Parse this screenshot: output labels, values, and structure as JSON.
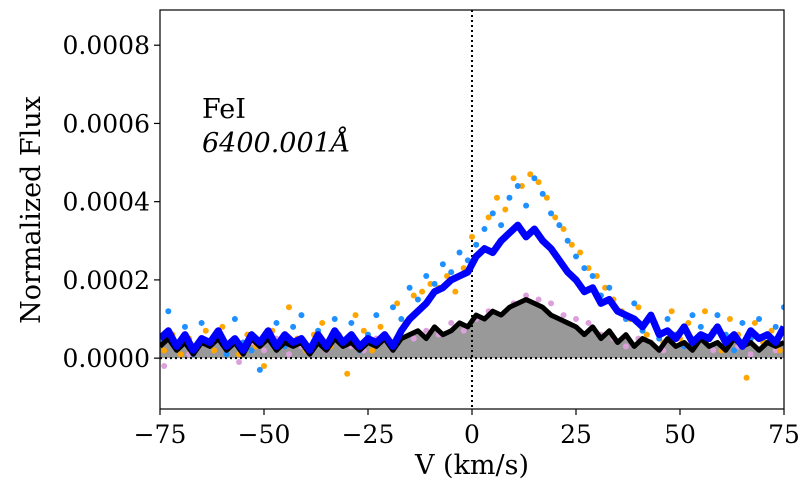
{
  "chart_data": {
    "type": "line",
    "title": "",
    "xlabel": "V (km/s)",
    "ylabel": "Normalized Flux",
    "xlim": [
      -75,
      75
    ],
    "ylim": [
      -0.00013,
      0.00089
    ],
    "x_ticks": [
      -75,
      -50,
      -25,
      0,
      25,
      50,
      75
    ],
    "x_tick_labels": [
      "−75",
      "−50",
      "−25",
      "0",
      "25",
      "50",
      "75"
    ],
    "y_ticks": [
      0,
      0.0002,
      0.0004,
      0.0006,
      0.0008
    ],
    "y_tick_labels": [
      "0.0000",
      "0.0002",
      "0.0004",
      "0.0006",
      "0.0008"
    ],
    "annotation": {
      "element": "FeI",
      "wavelength": "6400.001Å",
      "position": "top-left"
    },
    "reference_lines": {
      "zero_flux": 0,
      "zero_velocity": 0,
      "style": "dotted"
    },
    "series": [
      {
        "name": "orange-points",
        "style": "scatter",
        "color": "#FFA500",
        "x": [
          -74,
          -72,
          -70,
          -68,
          -66,
          -64,
          -62,
          -60,
          -58,
          -56,
          -54,
          -52,
          -50,
          -48,
          -46,
          -44,
          -42,
          -40,
          -38,
          -36,
          -34,
          -32,
          -30,
          -28,
          -26,
          -24,
          -22,
          -20,
          -18,
          -16,
          -14,
          -12,
          -10,
          -8,
          -6,
          -4,
          -2,
          0,
          2,
          4,
          6,
          8,
          10,
          12,
          14,
          16,
          18,
          20,
          22,
          24,
          26,
          28,
          30,
          32,
          34,
          36,
          38,
          40,
          42,
          44,
          46,
          48,
          50,
          52,
          54,
          56,
          58,
          60,
          62,
          64,
          66,
          68,
          70,
          72,
          74
        ],
        "y": [
          2e-05,
          6e-05,
          1e-05,
          5e-05,
          3e-05,
          7e-05,
          2e-05,
          8e-05,
          4e-05,
          1e-05,
          6e-05,
          3e-05,
          -2e-05,
          7e-05,
          4e-05,
          0.00013,
          5e-05,
          2e-05,
          6e-05,
          9e-05,
          3e-05,
          4e-05,
          -4e-05,
          0.00011,
          7e-05,
          2e-05,
          8e-05,
          4e-05,
          0.00014,
          9e-05,
          0.00016,
          0.00017,
          0.00019,
          0.00018,
          0.00021,
          0.00017,
          0.00023,
          0.00031,
          0.00027,
          0.00036,
          0.00041,
          0.00038,
          0.00046,
          0.00044,
          0.00047,
          0.00045,
          0.00041,
          0.00036,
          0.00033,
          0.00029,
          0.00027,
          0.00023,
          0.00021,
          0.00018,
          0.00015,
          0.00012,
          0.0001,
          0.00013,
          6e-05,
          9e-05,
          4e-05,
          0.00012,
          5e-05,
          9e-05,
          4e-05,
          0.00012,
          7e-05,
          2e-05,
          0.0001,
          6e-05,
          -5e-05,
          9e-05,
          4e-05,
          7e-05,
          2e-05
        ]
      },
      {
        "name": "lightblue-points",
        "style": "scatter",
        "color": "#1E90FF",
        "x": [
          -75,
          -73,
          -71,
          -69,
          -67,
          -65,
          -63,
          -61,
          -59,
          -57,
          -55,
          -53,
          -51,
          -49,
          -47,
          -45,
          -43,
          -41,
          -39,
          -37,
          -35,
          -33,
          -31,
          -29,
          -27,
          -25,
          -23,
          -21,
          -19,
          -17,
          -15,
          -13,
          -11,
          -9,
          -7,
          -5,
          -3,
          -1,
          1,
          3,
          5,
          7,
          9,
          11,
          13,
          15,
          17,
          19,
          21,
          23,
          25,
          27,
          29,
          31,
          33,
          35,
          37,
          39,
          41,
          43,
          45,
          47,
          49,
          51,
          53,
          55,
          57,
          59,
          61,
          63,
          65,
          67,
          69,
          71,
          73,
          75
        ],
        "y": [
          4e-05,
          0.00012,
          3e-05,
          8e-05,
          1e-05,
          9e-05,
          4e-05,
          7e-05,
          1e-05,
          0.0001,
          4e-05,
          2e-05,
          -3e-05,
          6e-05,
          9e-05,
          3e-05,
          8e-05,
          0.00011,
          2e-05,
          7e-05,
          3e-05,
          0.0001,
          4e-05,
          9e-05,
          2e-05,
          6e-05,
          0.00011,
          5e-05,
          0.00013,
          0.0001,
          0.00018,
          0.00015,
          0.00021,
          0.00019,
          0.00024,
          0.00022,
          0.00027,
          0.00025,
          0.00029,
          0.00033,
          0.00037,
          0.00034,
          0.00041,
          0.00044,
          0.00039,
          0.00046,
          0.00042,
          0.00037,
          0.00034,
          0.0003,
          0.00026,
          0.00023,
          0.00021,
          0.00016,
          0.00018,
          0.00012,
          0.0001,
          0.00014,
          7e-05,
          0.00011,
          5e-05,
          0.0001,
          6e-05,
          3e-05,
          0.00011,
          8e-05,
          5e-05,
          0.00011,
          6e-05,
          2e-05,
          9e-05,
          5e-05,
          0.0001,
          4e-05,
          8e-05,
          0.00013
        ]
      },
      {
        "name": "pink-points",
        "style": "scatter",
        "color": "#DDA0DD",
        "x": [
          -74,
          -71,
          -68,
          -65,
          -62,
          -59,
          -56,
          -53,
          -50,
          -47,
          -44,
          -41,
          -38,
          -35,
          -32,
          -29,
          -26,
          -23,
          -20,
          -17,
          -14,
          -11,
          -8,
          -5,
          -2,
          1,
          4,
          7,
          10,
          13,
          16,
          19,
          22,
          25,
          28,
          31,
          34,
          37,
          40,
          43,
          46,
          49,
          52,
          55,
          58,
          61,
          64,
          67,
          70,
          73
        ],
        "y": [
          -2e-05,
          4e-05,
          1e-05,
          5e-05,
          2e-05,
          3e-05,
          -1e-05,
          4e-05,
          2e-05,
          5e-05,
          1e-05,
          3e-05,
          4e-05,
          2e-05,
          6e-05,
          3e-05,
          2e-05,
          5e-05,
          4e-05,
          6e-05,
          5e-05,
          7e-05,
          6e-05,
          9e-05,
          7e-05,
          0.0001,
          0.00012,
          0.00011,
          0.00014,
          0.00016,
          0.00015,
          0.00014,
          0.00011,
          0.0001,
          9e-05,
          6e-05,
          5e-05,
          3e-05,
          5e-05,
          4e-05,
          2e-05,
          5e-05,
          3e-05,
          6e-05,
          2e-05,
          4e-05,
          3e-05,
          1e-05,
          4e-05,
          2e-05
        ]
      },
      {
        "name": "blue-line",
        "style": "line",
        "color": "#0000FF",
        "x": [
          -75,
          -73,
          -71,
          -69,
          -67,
          -65,
          -63,
          -61,
          -59,
          -57,
          -55,
          -53,
          -51,
          -49,
          -47,
          -45,
          -43,
          -41,
          -39,
          -37,
          -35,
          -33,
          -31,
          -29,
          -27,
          -25,
          -23,
          -21,
          -19,
          -17,
          -15,
          -13,
          -11,
          -9,
          -7,
          -5,
          -3,
          -1,
          1,
          3,
          5,
          7,
          9,
          11,
          13,
          15,
          17,
          19,
          21,
          23,
          25,
          27,
          29,
          31,
          33,
          35,
          37,
          39,
          41,
          43,
          45,
          47,
          49,
          51,
          53,
          55,
          57,
          59,
          61,
          63,
          65,
          67,
          69,
          71,
          73,
          75
        ],
        "y": [
          5e-05,
          7e-05,
          3e-05,
          6e-05,
          2e-05,
          5e-05,
          4e-05,
          7e-05,
          3e-05,
          5e-05,
          2e-05,
          6e-05,
          4e-05,
          7e-05,
          3e-05,
          6e-05,
          4e-05,
          5e-05,
          2e-05,
          6e-05,
          3e-05,
          7e-05,
          4e-05,
          6e-05,
          3e-05,
          5e-05,
          4e-05,
          6e-05,
          3e-05,
          7e-05,
          0.0001,
          0.00012,
          0.00014,
          0.00017,
          0.00018,
          0.0002,
          0.00021,
          0.00022,
          0.00026,
          0.00028,
          0.00027,
          0.0003,
          0.00032,
          0.00034,
          0.00031,
          0.00033,
          0.0003,
          0.00028,
          0.00025,
          0.00022,
          0.0002,
          0.00017,
          0.00018,
          0.00014,
          0.00015,
          0.00012,
          0.00011,
          0.0001,
          8e-05,
          0.00011,
          6e-05,
          7e-05,
          5e-05,
          8e-05,
          4e-05,
          6e-05,
          5e-05,
          8e-05,
          4e-05,
          6e-05,
          3e-05,
          7e-05,
          5e-05,
          6e-05,
          4e-05,
          8e-05
        ]
      },
      {
        "name": "black-line",
        "style": "line",
        "color": "#000000",
        "x": [
          -75,
          -73,
          -71,
          -69,
          -67,
          -65,
          -63,
          -61,
          -59,
          -57,
          -55,
          -53,
          -51,
          -49,
          -47,
          -45,
          -43,
          -41,
          -39,
          -37,
          -35,
          -33,
          -31,
          -29,
          -27,
          -25,
          -23,
          -21,
          -19,
          -17,
          -15,
          -13,
          -11,
          -9,
          -7,
          -5,
          -3,
          -1,
          1,
          3,
          5,
          7,
          9,
          11,
          13,
          15,
          17,
          19,
          21,
          23,
          25,
          27,
          29,
          31,
          33,
          35,
          37,
          39,
          41,
          43,
          45,
          47,
          49,
          51,
          53,
          55,
          57,
          59,
          61,
          63,
          65,
          67,
          69,
          71,
          73,
          75
        ],
        "y": [
          3e-05,
          5e-05,
          2e-05,
          4e-05,
          1e-05,
          4e-05,
          3e-05,
          5e-05,
          2e-05,
          4e-05,
          1e-05,
          5e-05,
          3e-05,
          5e-05,
          2e-05,
          4e-05,
          3e-05,
          4e-05,
          1e-05,
          4e-05,
          2e-05,
          5e-05,
          3e-05,
          4e-05,
          2e-05,
          4e-05,
          3e-05,
          5e-05,
          2e-05,
          5e-05,
          6e-05,
          7e-05,
          5e-05,
          8e-05,
          6e-05,
          7e-05,
          9e-05,
          8e-05,
          0.00011,
          0.0001,
          0.00012,
          0.00011,
          0.00013,
          0.00014,
          0.00015,
          0.00014,
          0.00013,
          0.00011,
          0.0001,
          9e-05,
          8e-05,
          6e-05,
          8e-05,
          5e-05,
          7e-05,
          4e-05,
          6e-05,
          3e-05,
          5e-05,
          4e-05,
          2e-05,
          5e-05,
          3e-05,
          4e-05,
          2e-05,
          5e-05,
          3e-05,
          4e-05,
          2e-05,
          5e-05,
          3e-05,
          4e-05,
          2e-05,
          4e-05,
          3e-05,
          4e-05
        ]
      }
    ],
    "colors": {
      "orange": "#FFA500",
      "lightblue": "#1E90FF",
      "pink": "#DDA0DD",
      "blue": "#0000FF",
      "black": "#000000",
      "fill_gray": "#999999"
    }
  }
}
